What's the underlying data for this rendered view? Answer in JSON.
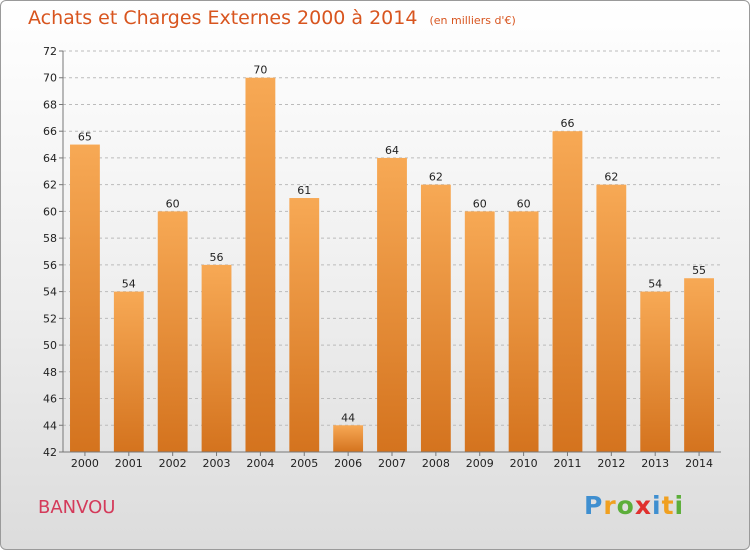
{
  "header": {
    "title": "Achats et Charges Externes 2000 à 2014",
    "subtitle": "(en milliers d'€)"
  },
  "footer": {
    "commune": "BANVOU",
    "brand_letters": [
      "P",
      "r",
      "o",
      "x",
      "i",
      "t",
      "i"
    ],
    "brand_colors": [
      "#3f8fd0",
      "#f0a020",
      "#5cae3a",
      "#e0302e",
      "#3f8fd0",
      "#f0a020",
      "#5cae3a"
    ]
  },
  "colors": {
    "bar_top": "#f7a955",
    "bar_bottom": "#d4731e",
    "grid": "#bbbbbb",
    "axis": "#777777"
  },
  "chart_data": {
    "type": "bar",
    "title": "Achats et Charges Externes 2000 à 2014",
    "subtitle": "(en milliers d'€)",
    "categories": [
      "2000",
      "2001",
      "2002",
      "2003",
      "2004",
      "2005",
      "2006",
      "2007",
      "2008",
      "2009",
      "2010",
      "2011",
      "2012",
      "2013",
      "2014"
    ],
    "values": [
      65,
      54,
      60,
      56,
      70,
      61,
      44,
      64,
      62,
      60,
      60,
      66,
      62,
      54,
      55
    ],
    "ylim": [
      42,
      72
    ],
    "ytick_step": 2,
    "grid": true,
    "data_labels": true
  }
}
